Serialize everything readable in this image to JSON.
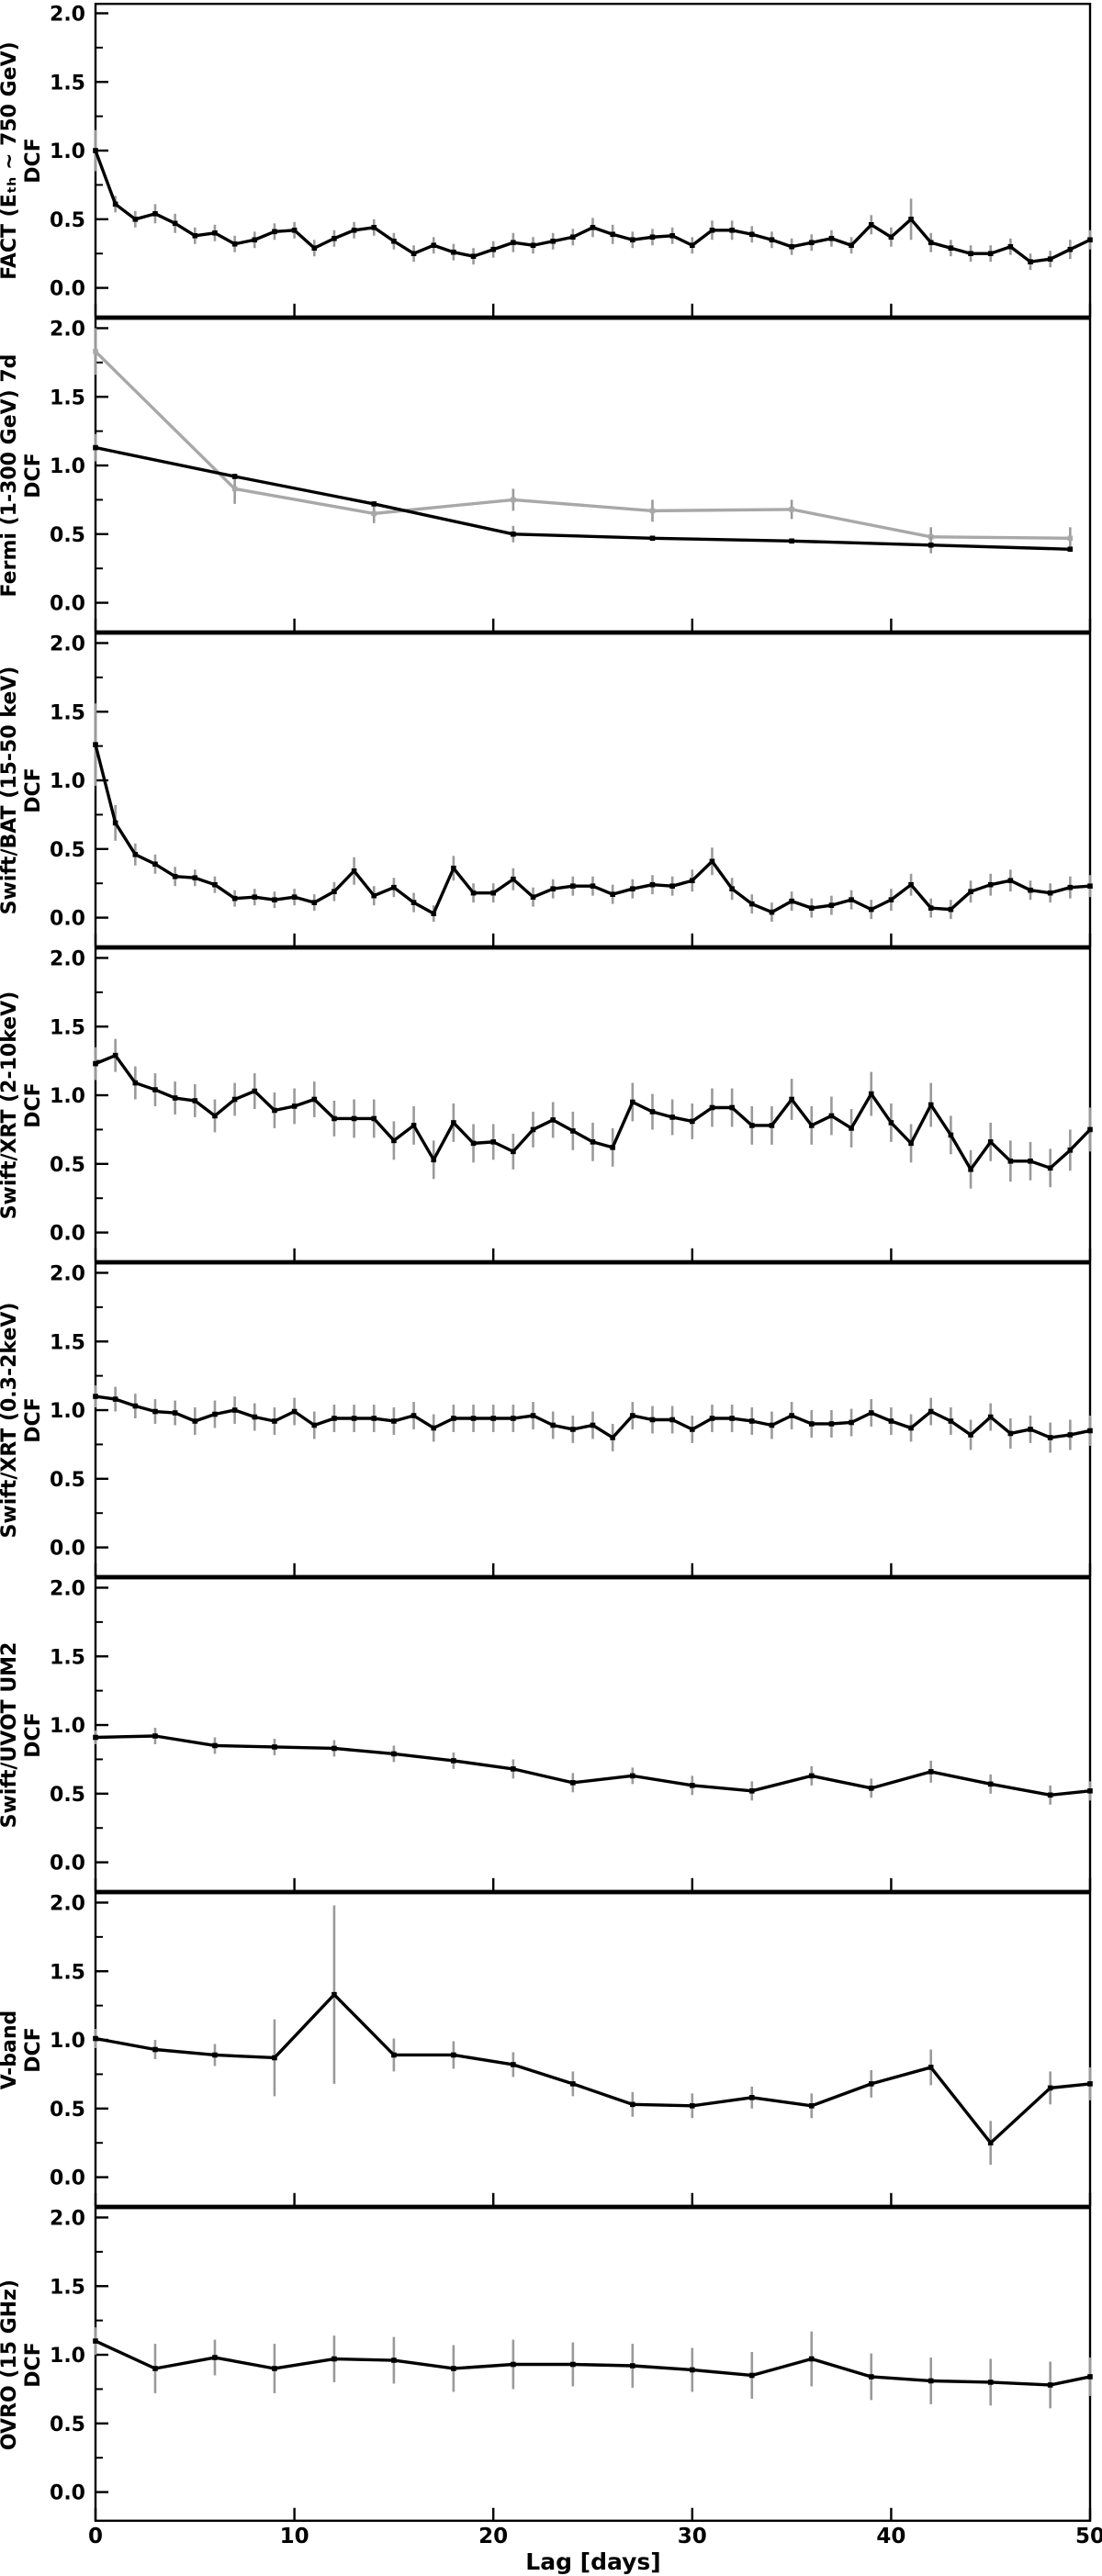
{
  "figure": {
    "xlabel": "Lag [days]",
    "xticks": [
      0,
      10,
      20,
      30,
      40,
      50
    ],
    "xlim": [
      0,
      50
    ],
    "ylim": [
      -0.21,
      2.07
    ],
    "yticks": [
      0.0,
      0.5,
      1.0,
      1.5,
      2.0
    ],
    "ytick_labels": [
      "0.0",
      "0.5",
      "1.0",
      "1.5",
      "2.0"
    ],
    "yticks_minor": [
      0.25,
      0.75,
      1.25,
      1.75
    ],
    "colors": {
      "line": "#000000",
      "gray_line": "#a8a8a8",
      "error_bar": "#9a9a9a",
      "background": "#ffffff"
    }
  },
  "chart_data": [
    {
      "type": "line",
      "ylabel": "FACT (Eₜₕ ~ 750 GeV)",
      "ylabel2": "DCF",
      "series": [
        {
          "name": "dcf",
          "color": "#000000",
          "x": [
            0,
            1,
            2,
            3,
            4,
            5,
            6,
            7,
            8,
            9,
            10,
            11,
            12,
            13,
            14,
            15,
            16,
            17,
            18,
            19,
            20,
            21,
            22,
            23,
            24,
            25,
            26,
            27,
            28,
            29,
            30,
            31,
            32,
            33,
            34,
            35,
            36,
            37,
            38,
            39,
            40,
            41,
            42,
            43,
            44,
            45,
            46,
            47,
            48,
            49,
            50
          ],
          "y": [
            1.0,
            0.61,
            0.5,
            0.54,
            0.47,
            0.38,
            0.4,
            0.32,
            0.35,
            0.41,
            0.42,
            0.29,
            0.36,
            0.42,
            0.44,
            0.34,
            0.25,
            0.31,
            0.26,
            0.23,
            0.28,
            0.33,
            0.31,
            0.34,
            0.37,
            0.44,
            0.39,
            0.35,
            0.37,
            0.38,
            0.31,
            0.42,
            0.42,
            0.39,
            0.35,
            0.3,
            0.33,
            0.36,
            0.31,
            0.46,
            0.37,
            0.5,
            0.33,
            0.29,
            0.25,
            0.25,
            0.3,
            0.19,
            0.21,
            0.28,
            0.35
          ],
          "err": [
            0.15,
            0.06,
            0.06,
            0.07,
            0.07,
            0.06,
            0.06,
            0.06,
            0.06,
            0.06,
            0.06,
            0.06,
            0.06,
            0.06,
            0.06,
            0.06,
            0.06,
            0.06,
            0.06,
            0.06,
            0.06,
            0.07,
            0.06,
            0.06,
            0.06,
            0.07,
            0.07,
            0.06,
            0.06,
            0.06,
            0.06,
            0.07,
            0.07,
            0.06,
            0.06,
            0.06,
            0.06,
            0.06,
            0.06,
            0.07,
            0.07,
            0.15,
            0.07,
            0.06,
            0.06,
            0.06,
            0.06,
            0.06,
            0.06,
            0.07,
            0.07
          ]
        }
      ]
    },
    {
      "type": "line",
      "ylabel": "Fermi (1-300 GeV) 7d",
      "ylabel2": "DCF",
      "series": [
        {
          "name": "dcf_gray",
          "color": "#a8a8a8",
          "x": [
            0,
            7,
            14,
            21,
            28,
            35,
            42,
            49
          ],
          "y": [
            1.83,
            0.83,
            0.65,
            0.75,
            0.67,
            0.68,
            0.48,
            0.47
          ],
          "err": [
            0.17,
            0.11,
            0.07,
            0.08,
            0.08,
            0.07,
            0.07,
            0.08
          ]
        },
        {
          "name": "dcf_black",
          "color": "#000000",
          "x": [
            0,
            7,
            14,
            21,
            28,
            35,
            42,
            49
          ],
          "y": [
            1.13,
            0.92,
            0.72,
            0.5,
            0.47,
            0.45,
            0.42,
            0.39
          ],
          "err": [
            0.1,
            0,
            0,
            0.06,
            0,
            0,
            0.06,
            0
          ]
        }
      ]
    },
    {
      "type": "line",
      "ylabel": "Swift/BAT (15-50 keV)",
      "ylabel2": "DCF",
      "series": [
        {
          "name": "dcf",
          "color": "#000000",
          "x": [
            0,
            1,
            2,
            3,
            4,
            5,
            6,
            7,
            8,
            9,
            10,
            11,
            12,
            13,
            14,
            15,
            16,
            17,
            18,
            19,
            20,
            21,
            22,
            23,
            24,
            25,
            26,
            27,
            28,
            29,
            30,
            31,
            32,
            33,
            34,
            35,
            36,
            37,
            38,
            39,
            40,
            41,
            42,
            43,
            44,
            45,
            46,
            47,
            48,
            49,
            50
          ],
          "y": [
            1.26,
            0.69,
            0.46,
            0.39,
            0.3,
            0.29,
            0.24,
            0.14,
            0.15,
            0.13,
            0.15,
            0.11,
            0.19,
            0.34,
            0.16,
            0.22,
            0.11,
            0.03,
            0.36,
            0.18,
            0.18,
            0.28,
            0.15,
            0.21,
            0.23,
            0.23,
            0.17,
            0.21,
            0.24,
            0.23,
            0.27,
            0.41,
            0.21,
            0.1,
            0.04,
            0.12,
            0.07,
            0.09,
            0.13,
            0.06,
            0.13,
            0.24,
            0.07,
            0.06,
            0.19,
            0.24,
            0.27,
            0.2,
            0.18,
            0.22,
            0.23
          ],
          "err": [
            0.3,
            0.13,
            0.08,
            0.07,
            0.07,
            0.06,
            0.06,
            0.06,
            0.06,
            0.06,
            0.06,
            0.06,
            0.07,
            0.1,
            0.07,
            0.07,
            0.07,
            0.06,
            0.09,
            0.07,
            0.07,
            0.08,
            0.07,
            0.07,
            0.07,
            0.07,
            0.07,
            0.07,
            0.07,
            0.07,
            0.08,
            0.1,
            0.08,
            0.07,
            0.07,
            0.07,
            0.07,
            0.07,
            0.07,
            0.07,
            0.08,
            0.08,
            0.07,
            0.07,
            0.08,
            0.08,
            0.08,
            0.07,
            0.07,
            0.08,
            0.08
          ]
        }
      ]
    },
    {
      "type": "line",
      "ylabel": "Swift/XRT (2-10keV)",
      "ylabel2": "DCF",
      "series": [
        {
          "name": "dcf",
          "color": "#000000",
          "x": [
            0,
            1,
            2,
            3,
            4,
            5,
            6,
            7,
            8,
            9,
            10,
            11,
            12,
            13,
            14,
            15,
            16,
            17,
            18,
            19,
            20,
            21,
            22,
            23,
            24,
            25,
            26,
            27,
            28,
            29,
            30,
            31,
            32,
            33,
            34,
            35,
            36,
            37,
            38,
            39,
            40,
            41,
            42,
            43,
            44,
            45,
            46,
            47,
            48,
            49,
            50
          ],
          "y": [
            1.23,
            1.29,
            1.09,
            1.04,
            0.98,
            0.96,
            0.85,
            0.97,
            1.03,
            0.89,
            0.92,
            0.97,
            0.83,
            0.83,
            0.83,
            0.67,
            0.78,
            0.53,
            0.8,
            0.65,
            0.66,
            0.59,
            0.75,
            0.82,
            0.74,
            0.66,
            0.62,
            0.95,
            0.88,
            0.84,
            0.81,
            0.91,
            0.91,
            0.78,
            0.78,
            0.97,
            0.78,
            0.85,
            0.76,
            1.01,
            0.8,
            0.65,
            0.93,
            0.71,
            0.46,
            0.66,
            0.52,
            0.52,
            0.47,
            0.6,
            0.75
          ],
          "err": [
            0.12,
            0.12,
            0.12,
            0.12,
            0.12,
            0.12,
            0.12,
            0.12,
            0.13,
            0.13,
            0.13,
            0.13,
            0.13,
            0.14,
            0.14,
            0.14,
            0.14,
            0.14,
            0.14,
            0.14,
            0.13,
            0.13,
            0.13,
            0.13,
            0.14,
            0.14,
            0.14,
            0.14,
            0.13,
            0.13,
            0.13,
            0.14,
            0.14,
            0.14,
            0.14,
            0.15,
            0.14,
            0.14,
            0.14,
            0.16,
            0.14,
            0.14,
            0.16,
            0.14,
            0.14,
            0.14,
            0.15,
            0.14,
            0.14,
            0.15,
            0.16
          ]
        }
      ]
    },
    {
      "type": "line",
      "ylabel": "Swift/XRT (0.3-2keV)",
      "ylabel2": "DCF",
      "series": [
        {
          "name": "dcf",
          "color": "#000000",
          "x": [
            0,
            1,
            2,
            3,
            4,
            5,
            6,
            7,
            8,
            9,
            10,
            11,
            12,
            13,
            14,
            15,
            16,
            17,
            18,
            19,
            20,
            21,
            22,
            23,
            24,
            25,
            26,
            27,
            28,
            29,
            30,
            31,
            32,
            33,
            34,
            35,
            36,
            37,
            38,
            39,
            40,
            41,
            42,
            43,
            44,
            45,
            46,
            47,
            48,
            49,
            50
          ],
          "y": [
            1.1,
            1.08,
            1.03,
            0.99,
            0.98,
            0.92,
            0.97,
            1.0,
            0.95,
            0.92,
            0.99,
            0.89,
            0.94,
            0.94,
            0.94,
            0.92,
            0.96,
            0.87,
            0.94,
            0.94,
            0.94,
            0.94,
            0.96,
            0.89,
            0.86,
            0.89,
            0.8,
            0.96,
            0.93,
            0.93,
            0.86,
            0.94,
            0.94,
            0.92,
            0.89,
            0.96,
            0.9,
            0.9,
            0.91,
            0.98,
            0.92,
            0.87,
            0.99,
            0.92,
            0.82,
            0.95,
            0.83,
            0.86,
            0.8,
            0.82,
            0.85
          ],
          "err": [
            0.08,
            0.09,
            0.09,
            0.09,
            0.09,
            0.1,
            0.1,
            0.1,
            0.1,
            0.1,
            0.1,
            0.1,
            0.1,
            0.1,
            0.1,
            0.1,
            0.1,
            0.1,
            0.1,
            0.1,
            0.1,
            0.1,
            0.1,
            0.1,
            0.1,
            0.1,
            0.1,
            0.1,
            0.1,
            0.1,
            0.1,
            0.1,
            0.1,
            0.1,
            0.1,
            0.1,
            0.1,
            0.1,
            0.1,
            0.1,
            0.1,
            0.1,
            0.1,
            0.1,
            0.11,
            0.1,
            0.11,
            0.1,
            0.11,
            0.11,
            0.11
          ]
        }
      ]
    },
    {
      "type": "line",
      "ylabel": "Swift/UVOT UM2",
      "ylabel2": "DCF",
      "series": [
        {
          "name": "dcf",
          "color": "#000000",
          "x": [
            0,
            3,
            6,
            9,
            12,
            15,
            18,
            21,
            24,
            27,
            30,
            33,
            36,
            39,
            42,
            45,
            48,
            50
          ],
          "y": [
            0.91,
            0.92,
            0.85,
            0.84,
            0.83,
            0.79,
            0.74,
            0.68,
            0.58,
            0.63,
            0.56,
            0.52,
            0.63,
            0.54,
            0.66,
            0.57,
            0.49,
            0.52
          ],
          "err": [
            0.05,
            0.06,
            0.06,
            0.06,
            0.06,
            0.06,
            0.06,
            0.07,
            0.07,
            0.06,
            0.07,
            0.07,
            0.07,
            0.07,
            0.08,
            0.07,
            0.07,
            0.07
          ]
        }
      ]
    },
    {
      "type": "line",
      "ylabel": "V-band",
      "ylabel2": "DCF",
      "series": [
        {
          "name": "dcf",
          "color": "#000000",
          "x": [
            0,
            3,
            6,
            9,
            12,
            15,
            18,
            21,
            24,
            27,
            30,
            33,
            36,
            39,
            42,
            45,
            48,
            50
          ],
          "y": [
            1.01,
            0.93,
            0.89,
            0.87,
            1.33,
            0.89,
            0.89,
            0.82,
            0.68,
            0.53,
            0.52,
            0.58,
            0.52,
            0.68,
            0.8,
            0.25,
            0.65,
            0.68
          ],
          "err": [
            0.07,
            0.07,
            0.08,
            0.28,
            0.65,
            0.12,
            0.1,
            0.09,
            0.09,
            0.09,
            0.09,
            0.08,
            0.09,
            0.1,
            0.13,
            0.16,
            0.12,
            0.12
          ]
        }
      ]
    },
    {
      "type": "line",
      "ylabel": "OVRO (15 GHz)",
      "ylabel2": "DCF",
      "series": [
        {
          "name": "dcf",
          "color": "#000000",
          "x": [
            0,
            3,
            6,
            9,
            12,
            15,
            18,
            21,
            24,
            27,
            30,
            33,
            36,
            39,
            42,
            45,
            48,
            50
          ],
          "y": [
            1.1,
            0.9,
            0.98,
            0.9,
            0.97,
            0.96,
            0.9,
            0.93,
            0.93,
            0.92,
            0.89,
            0.85,
            0.97,
            0.84,
            0.81,
            0.8,
            0.78,
            0.84
          ],
          "err": [
            0.1,
            0.18,
            0.13,
            0.18,
            0.17,
            0.17,
            0.17,
            0.18,
            0.16,
            0.16,
            0.16,
            0.17,
            0.2,
            0.17,
            0.17,
            0.17,
            0.17,
            0.14
          ]
        }
      ]
    }
  ]
}
